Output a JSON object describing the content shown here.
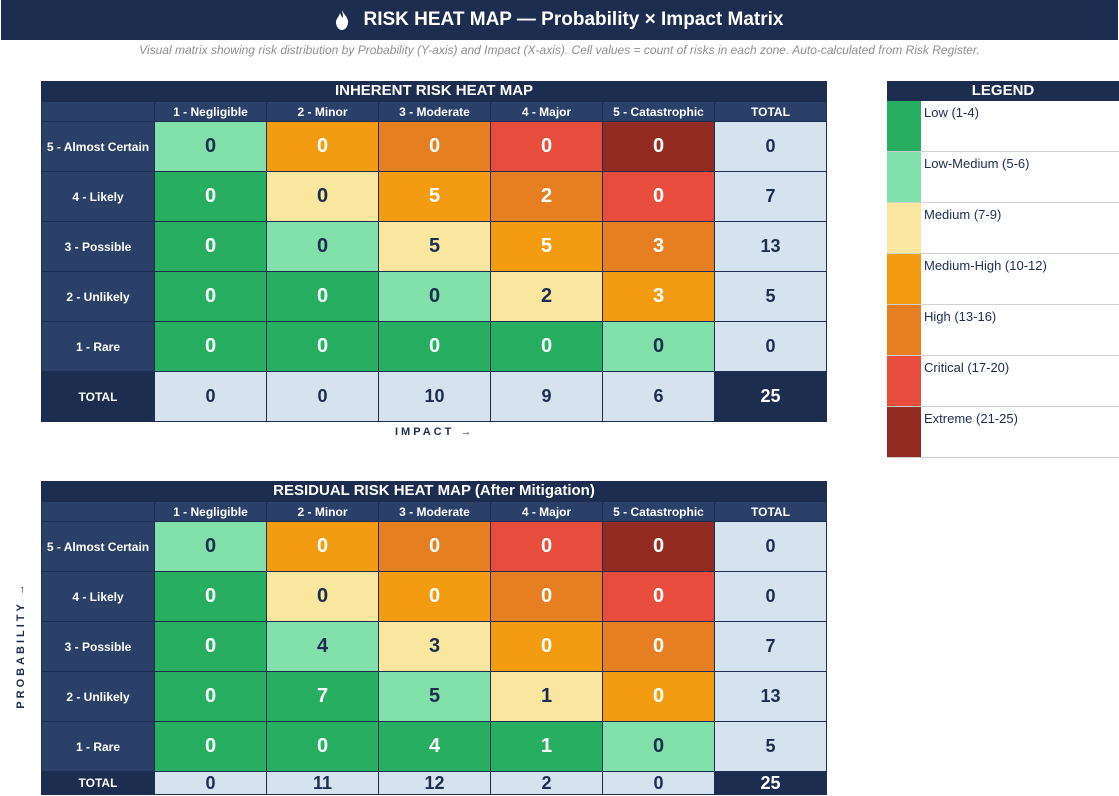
{
  "header": {
    "title": "RISK HEAT MAP — Probability × Impact Matrix",
    "subtitle": "Visual matrix showing risk distribution by Probability (Y-axis) and Impact (X-axis). Cell values = count of risks in each zone. Auto-calculated from Risk Register."
  },
  "axes": {
    "impact_label": "IMPACT →",
    "probability_label": "PROBABILITY →"
  },
  "legend": {
    "title": "LEGEND",
    "items": [
      {
        "label": "Low (1-4)",
        "color": "#27ae60"
      },
      {
        "label": "Low-Medium (5-6)",
        "color": "#82e0aa"
      },
      {
        "label": "Medium (7-9)",
        "color": "#f9e79f"
      },
      {
        "label": "Medium-High (10-12)",
        "color": "#f39c12"
      },
      {
        "label": "High (13-16)",
        "color": "#e67e22"
      },
      {
        "label": "Critical (17-20)",
        "color": "#e74c3c"
      },
      {
        "label": "Extreme (21-25)",
        "color": "#922b21"
      }
    ]
  },
  "chart_data": [
    {
      "type": "heatmap",
      "title": "INHERENT RISK HEAT MAP",
      "x_categories": [
        "1 - Negligible",
        "2 - Minor",
        "3 - Moderate",
        "4 - Major",
        "5 - Catastrophic"
      ],
      "y_categories": [
        "5 - Almost Certain",
        "4 - Likely",
        "3 - Possible",
        "2 - Unlikely",
        "1 - Rare"
      ],
      "total_label": "TOTAL",
      "values": [
        [
          0,
          0,
          0,
          0,
          0
        ],
        [
          0,
          0,
          5,
          2,
          0
        ],
        [
          0,
          0,
          5,
          5,
          3
        ],
        [
          0,
          0,
          0,
          2,
          3
        ],
        [
          0,
          0,
          0,
          0,
          0
        ]
      ],
      "row_totals": [
        0,
        7,
        13,
        5,
        0
      ],
      "column_totals": [
        0,
        0,
        10,
        9,
        6
      ],
      "grand_total": 25
    },
    {
      "type": "heatmap",
      "title": "RESIDUAL RISK HEAT MAP (After Mitigation)",
      "x_categories": [
        "1 - Negligible",
        "2 - Minor",
        "3 - Moderate",
        "4 - Major",
        "5 - Catastrophic"
      ],
      "y_categories": [
        "5 - Almost Certain",
        "4 - Likely",
        "3 - Possible",
        "2 - Unlikely",
        "1 - Rare"
      ],
      "total_label": "TOTAL",
      "values": [
        [
          0,
          0,
          0,
          0,
          0
        ],
        [
          0,
          0,
          0,
          0,
          0
        ],
        [
          0,
          4,
          3,
          0,
          0
        ],
        [
          0,
          7,
          5,
          1,
          0
        ],
        [
          0,
          0,
          4,
          1,
          0
        ]
      ],
      "row_totals": [
        0,
        0,
        7,
        13,
        5
      ],
      "column_totals": [
        0,
        11,
        12,
        2,
        0
      ],
      "grand_total": 25
    }
  ]
}
